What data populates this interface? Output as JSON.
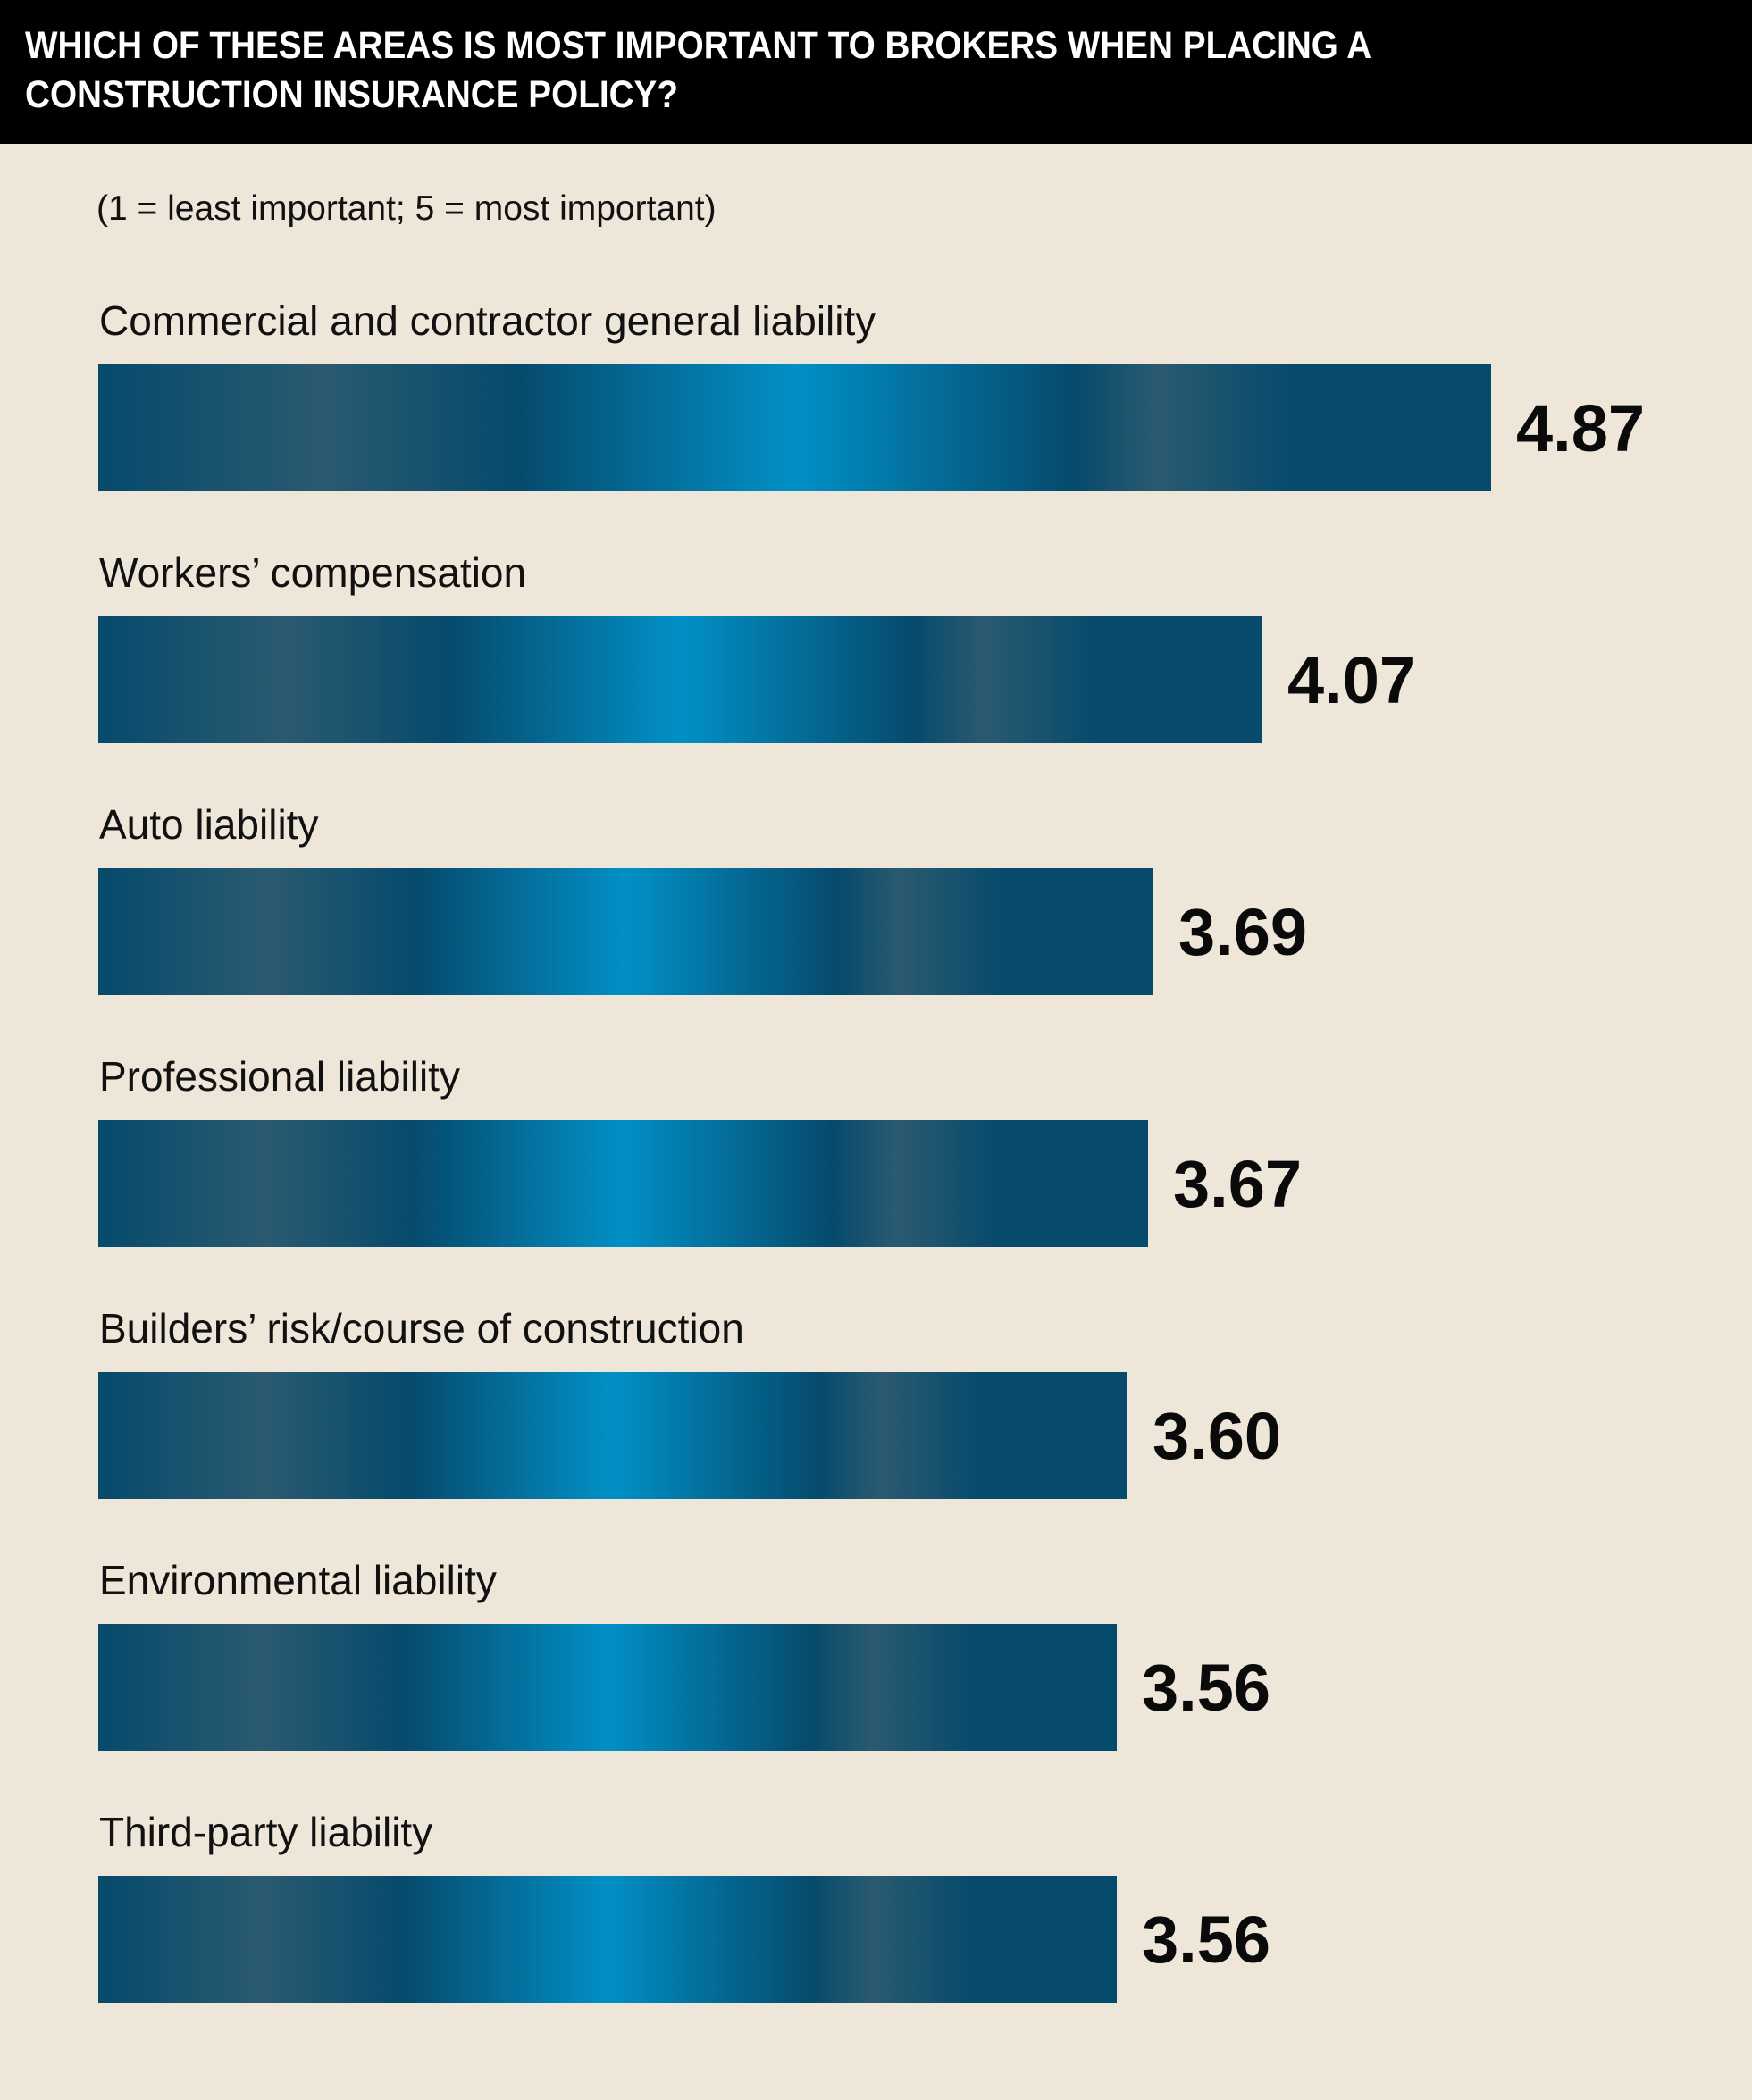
{
  "chart_data": {
    "type": "bar",
    "orientation": "horizontal",
    "title": "WHICH OF THESE AREAS IS MOST IMPORTANT TO BROKERS WHEN PLACING A CONSTRUCTION INSURANCE POLICY?",
    "subtitle": "(1 = least important; 5 = most important)",
    "categories": [
      "Commercial and contractor general liability",
      "Workers’ compensation",
      "Auto liability",
      "Professional liability",
      "Builders’ risk/course of construction",
      "Environmental liability",
      "Third-party liability"
    ],
    "values": [
      4.87,
      4.07,
      3.69,
      3.67,
      3.6,
      3.56,
      3.56
    ],
    "value_labels": [
      "4.87",
      "4.07",
      "3.69",
      "3.67",
      "3.60",
      "3.56",
      "3.56"
    ],
    "xlim": [
      0,
      4.87
    ],
    "grid": false,
    "legend": "none"
  },
  "colors": {
    "background": "#efe6da",
    "header": "#000000",
    "bar_dark": "#064a6c",
    "bar_light": "#0190c6",
    "bar_mid": "#2a5a70"
  }
}
